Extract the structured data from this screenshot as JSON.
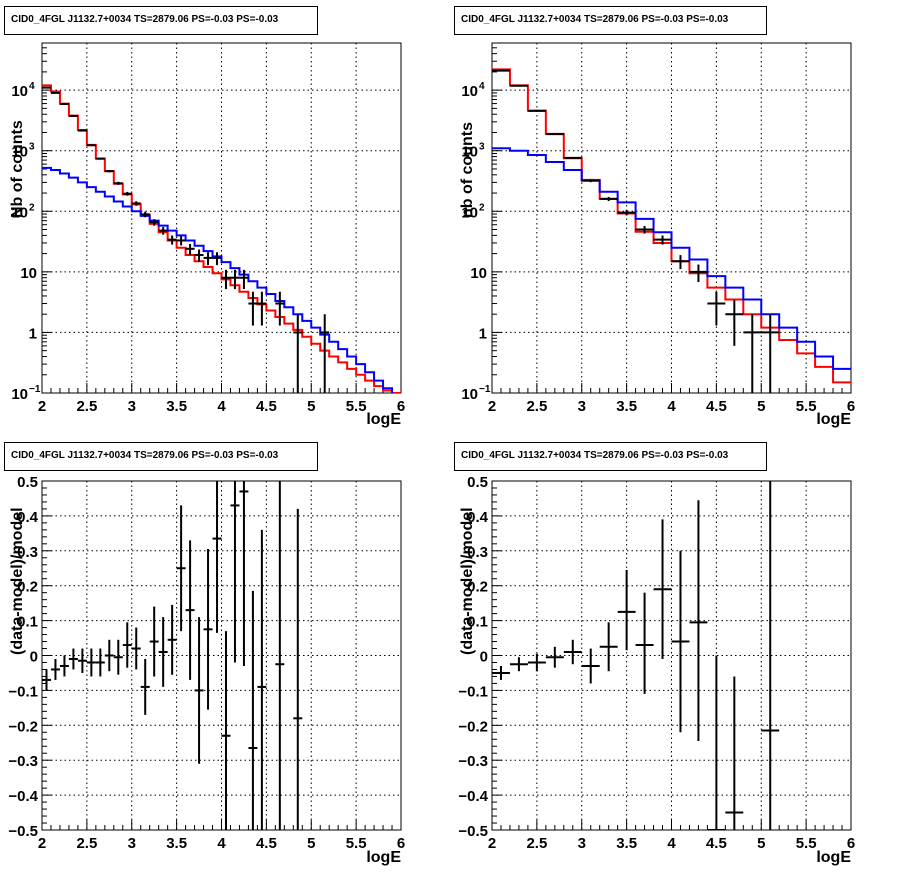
{
  "colors": {
    "total_model": "#ff0000",
    "component_model": "#0000ff",
    "data": "#000000",
    "grid": "#000000",
    "background": "#ffffff"
  },
  "chart_data": [
    {
      "id": "top-left",
      "type": "line",
      "title": "CID0_4FGL J1132.7+0034 TS=2879.06 PS=-0.03 PS=-0.03",
      "xlabel": "logE",
      "ylabel": "Nb of counts",
      "xlim": [
        2,
        6
      ],
      "ylim": [
        0.1,
        60000
      ],
      "yscale": "log",
      "grid": true,
      "xticks": [
        "2",
        "2.5",
        "3",
        "3.5",
        "4",
        "4.5",
        "5",
        "5.5",
        "6"
      ],
      "yticks": [
        {
          "value": 0.1,
          "label": "10",
          "exp": "−1"
        },
        {
          "value": 1,
          "label": "1",
          "exp": ""
        },
        {
          "value": 10,
          "label": "10",
          "exp": ""
        },
        {
          "value": 100,
          "label": "10",
          "exp": "2"
        },
        {
          "value": 1000,
          "label": "10",
          "exp": "3"
        },
        {
          "value": 10000,
          "label": "10",
          "exp": "4"
        }
      ],
      "bin_width": 0.1,
      "series": [
        {
          "style": "step",
          "color": "#ff0000",
          "x": [
            2.0,
            2.1,
            2.2,
            2.3,
            2.4,
            2.5,
            2.6,
            2.7,
            2.8,
            2.9,
            3.0,
            3.1,
            3.2,
            3.3,
            3.4,
            3.5,
            3.6,
            3.7,
            3.8,
            3.9,
            4.0,
            4.1,
            4.2,
            4.3,
            4.4,
            4.5,
            4.6,
            4.7,
            4.8,
            4.9,
            5.0,
            5.1,
            5.2,
            5.3,
            5.4,
            5.5,
            5.6,
            5.7,
            5.8,
            5.9
          ],
          "values": [
            12000,
            9500,
            6000,
            3800,
            2200,
            1250,
            740,
            460,
            285,
            190,
            130,
            88,
            62,
            45,
            33,
            25,
            19,
            15,
            12,
            9.5,
            7.5,
            6.0,
            4.7,
            3.7,
            2.9,
            2.3,
            1.8,
            1.4,
            1.1,
            0.85,
            0.65,
            0.5,
            0.4,
            0.32,
            0.25,
            0.2,
            0.16,
            0.13,
            0.11,
            0.1
          ]
        },
        {
          "style": "step",
          "color": "#0000ff",
          "x": [
            2.0,
            2.1,
            2.2,
            2.3,
            2.4,
            2.5,
            2.6,
            2.7,
            2.8,
            2.9,
            3.0,
            3.1,
            3.2,
            3.3,
            3.4,
            3.5,
            3.6,
            3.7,
            3.8,
            3.9,
            4.0,
            4.1,
            4.2,
            4.3,
            4.4,
            4.5,
            4.6,
            4.7,
            4.8,
            4.9,
            5.0,
            5.1,
            5.2,
            5.3,
            5.4,
            5.5,
            5.6,
            5.7,
            5.8,
            5.9
          ],
          "values": [
            520,
            480,
            420,
            360,
            300,
            250,
            210,
            175,
            145,
            120,
            100,
            84,
            70,
            58,
            48,
            40,
            33,
            27,
            22,
            18,
            14.5,
            11.5,
            9.0,
            7.0,
            5.5,
            4.3,
            3.3,
            2.6,
            2.0,
            1.55,
            1.2,
            0.92,
            0.7,
            0.53,
            0.4,
            0.3,
            0.22,
            0.16,
            0.12,
            0.09
          ]
        },
        {
          "style": "errorbar",
          "color": "#000000",
          "x": [
            2.05,
            2.15,
            2.25,
            2.35,
            2.45,
            2.55,
            2.65,
            2.75,
            2.85,
            2.95,
            3.05,
            3.15,
            3.25,
            3.35,
            3.45,
            3.55,
            3.65,
            3.75,
            3.85,
            3.95,
            4.05,
            4.15,
            4.25,
            4.35,
            4.45,
            4.65,
            4.85,
            5.15
          ],
          "values": [
            11000,
            9000,
            5900,
            3750,
            2150,
            1230,
            740,
            460,
            290,
            195,
            135,
            89,
            66,
            48,
            34,
            33,
            24,
            19,
            17,
            17,
            8,
            8,
            8,
            3,
            3,
            3,
            1,
            1
          ],
          "err_low": [
            105,
            95,
            77,
            61,
            46,
            35,
            27,
            21,
            17,
            14,
            11.6,
            9.4,
            8.1,
            6.9,
            5.8,
            5.7,
            4.9,
            4.4,
            4.1,
            4.1,
            2.8,
            2.8,
            2.8,
            1.7,
            1.7,
            1.7,
            0.99,
            0.99
          ],
          "err_high": [
            105,
            95,
            77,
            61,
            46,
            35,
            27,
            21,
            17,
            14,
            11.6,
            9.4,
            8.1,
            6.9,
            5.8,
            5.7,
            4.9,
            4.4,
            4.1,
            4.1,
            2.8,
            2.8,
            2.8,
            1.7,
            1.7,
            1.7,
            1.0,
            1.0
          ]
        }
      ]
    },
    {
      "id": "top-right",
      "type": "line",
      "title": "CID0_4FGL J1132.7+0034 TS=2879.06 PS=-0.03 PS=-0.03",
      "xlabel": "logE",
      "ylabel": "nb of counts",
      "xlim": [
        2,
        6
      ],
      "ylim": [
        0.1,
        60000
      ],
      "yscale": "log",
      "grid": true,
      "xticks": [
        "2",
        "2.5",
        "3",
        "3.5",
        "4",
        "4.5",
        "5",
        "5.5",
        "6"
      ],
      "yticks": [
        {
          "value": 0.1,
          "label": "10",
          "exp": "−1"
        },
        {
          "value": 1,
          "label": "1",
          "exp": ""
        },
        {
          "value": 10,
          "label": "10",
          "exp": ""
        },
        {
          "value": 100,
          "label": "10",
          "exp": "2"
        },
        {
          "value": 1000,
          "label": "10",
          "exp": "3"
        },
        {
          "value": 10000,
          "label": "10",
          "exp": "4"
        }
      ],
      "bin_width": 0.2,
      "series": [
        {
          "style": "step",
          "color": "#ff0000",
          "x": [
            2.0,
            2.2,
            2.4,
            2.6,
            2.8,
            3.0,
            3.2,
            3.4,
            3.6,
            3.8,
            4.0,
            4.2,
            4.4,
            4.6,
            4.8,
            5.0,
            5.2,
            5.4,
            5.6,
            5.8
          ],
          "values": [
            22000,
            12000,
            4600,
            1900,
            750,
            330,
            160,
            92,
            46,
            30,
            15,
            9.5,
            5.5,
            3.5,
            2.0,
            1.2,
            0.75,
            0.45,
            0.27,
            0.15
          ]
        },
        {
          "style": "step",
          "color": "#0000ff",
          "x": [
            2.0,
            2.2,
            2.4,
            2.6,
            2.8,
            3.0,
            3.2,
            3.4,
            3.6,
            3.8,
            4.0,
            4.2,
            4.4,
            4.6,
            4.8,
            5.0,
            5.2,
            5.4,
            5.6,
            5.8
          ],
          "values": [
            1100,
            1000,
            850,
            650,
            480,
            320,
            210,
            140,
            75,
            45,
            25,
            16,
            8.5,
            5.5,
            3.5,
            2.0,
            1.2,
            0.7,
            0.4,
            0.25
          ]
        },
        {
          "style": "errorbar",
          "color": "#000000",
          "x": [
            2.1,
            2.3,
            2.5,
            2.7,
            2.9,
            3.1,
            3.3,
            3.5,
            3.7,
            3.9,
            4.1,
            4.3,
            4.5,
            4.7,
            4.9,
            5.1
          ],
          "values": [
            21000,
            11800,
            4550,
            1880,
            760,
            320,
            160,
            95,
            50,
            34,
            15,
            10,
            3,
            2,
            1,
            1
          ],
          "err_low": [
            145,
            109,
            67,
            43,
            28,
            18,
            12.6,
            9.7,
            7.1,
            5.8,
            3.9,
            3.2,
            1.7,
            1.4,
            0.99,
            0.99
          ],
          "err_high": [
            145,
            109,
            67,
            43,
            28,
            18,
            12.6,
            9.7,
            7.1,
            5.8,
            3.9,
            3.2,
            1.7,
            1.4,
            1.0,
            1.0
          ]
        }
      ]
    },
    {
      "id": "bottom-left",
      "type": "scatter",
      "title": "CID0_4FGL J1132.7+0034 TS=2879.06 PS=-0.03 PS=-0.03",
      "xlabel": "logE",
      "ylabel": "(data-model)/model",
      "xlim": [
        2,
        6
      ],
      "ylim": [
        -0.5,
        0.5
      ],
      "yscale": "linear",
      "grid": true,
      "xticks": [
        "2",
        "2.5",
        "3",
        "3.5",
        "4",
        "4.5",
        "5",
        "5.5",
        "6"
      ],
      "yticks": [
        {
          "value": -0.5,
          "label": "−0.5"
        },
        {
          "value": -0.4,
          "label": "−0.4"
        },
        {
          "value": -0.3,
          "label": "−0.3"
        },
        {
          "value": -0.2,
          "label": "−0.2"
        },
        {
          "value": -0.1,
          "label": "−0.1"
        },
        {
          "value": 0,
          "label": "0"
        },
        {
          "value": 0.1,
          "label": "0.1"
        },
        {
          "value": 0.2,
          "label": "0.2"
        },
        {
          "value": 0.3,
          "label": "0.3"
        },
        {
          "value": 0.4,
          "label": "0.4"
        },
        {
          "value": 0.5,
          "label": "0.5"
        }
      ],
      "bin_width": 0.1,
      "series": [
        {
          "style": "errorbar",
          "color": "#000000",
          "x": [
            2.05,
            2.15,
            2.25,
            2.35,
            2.45,
            2.55,
            2.65,
            2.75,
            2.85,
            2.95,
            3.05,
            3.15,
            3.25,
            3.35,
            3.45,
            3.55,
            3.65,
            3.75,
            3.85,
            3.95,
            4.05,
            4.15,
            4.25,
            4.35,
            4.45,
            4.65,
            4.85
          ],
          "values": [
            -0.07,
            -0.04,
            -0.03,
            -0.01,
            -0.015,
            -0.02,
            -0.02,
            0.0,
            -0.005,
            0.03,
            0.02,
            -0.09,
            0.04,
            0.01,
            0.045,
            0.25,
            0.13,
            -0.1,
            0.075,
            0.335,
            -0.23,
            0.43,
            0.47,
            -0.265,
            -0.09,
            -0.025,
            -0.18
          ],
          "err_low": [
            0.03,
            0.03,
            0.03,
            0.03,
            0.035,
            0.04,
            0.04,
            0.045,
            0.05,
            0.065,
            0.06,
            0.08,
            0.1,
            0.1,
            0.1,
            0.18,
            0.2,
            0.21,
            0.23,
            0.27,
            0.3,
            0.45,
            0.5,
            0.45,
            0.45,
            0.5,
            0.5
          ],
          "err_high": [
            0.03,
            0.03,
            0.03,
            0.03,
            0.035,
            0.04,
            0.04,
            0.045,
            0.05,
            0.065,
            0.06,
            0.08,
            0.1,
            0.1,
            0.1,
            0.18,
            0.2,
            0.21,
            0.23,
            0.27,
            0.3,
            0.45,
            0.5,
            0.45,
            0.45,
            0.6,
            0.6
          ]
        }
      ]
    },
    {
      "id": "bottom-right",
      "type": "scatter",
      "title": "CID0_4FGL J1132.7+0034 TS=2879.06 PS=-0.03 PS=-0.03",
      "xlabel": "logE",
      "ylabel": "(data-model)/model",
      "xlim": [
        2,
        6
      ],
      "ylim": [
        -0.5,
        0.5
      ],
      "yscale": "linear",
      "grid": true,
      "xticks": [
        "2",
        "2.5",
        "3",
        "3.5",
        "4",
        "4.5",
        "5",
        "5.5",
        "6"
      ],
      "yticks": [
        {
          "value": -0.5,
          "label": "−0.5"
        },
        {
          "value": -0.4,
          "label": "−0.4"
        },
        {
          "value": -0.3,
          "label": "−0.3"
        },
        {
          "value": -0.2,
          "label": "−0.2"
        },
        {
          "value": -0.1,
          "label": "−0.1"
        },
        {
          "value": 0,
          "label": "0"
        },
        {
          "value": 0.1,
          "label": "0.1"
        },
        {
          "value": 0.2,
          "label": "0.2"
        },
        {
          "value": 0.3,
          "label": "0.3"
        },
        {
          "value": 0.4,
          "label": "0.4"
        },
        {
          "value": 0.5,
          "label": "0.5"
        }
      ],
      "bin_width": 0.2,
      "series": [
        {
          "style": "errorbar",
          "color": "#000000",
          "x": [
            2.1,
            2.3,
            2.5,
            2.7,
            2.9,
            3.1,
            3.3,
            3.5,
            3.7,
            3.9,
            4.1,
            4.3,
            4.5,
            4.7,
            5.1
          ],
          "values": [
            -0.05,
            -0.025,
            -0.02,
            -0.005,
            0.01,
            -0.03,
            0.025,
            0.125,
            0.03,
            0.19,
            0.04,
            0.095,
            -0.5,
            -0.45,
            -0.215
          ],
          "err_low": [
            0.02,
            0.02,
            0.025,
            0.03,
            0.035,
            0.05,
            0.07,
            0.11,
            0.14,
            0.2,
            0.26,
            0.34,
            0.5,
            0.5,
            0.6
          ],
          "err_high": [
            0.02,
            0.02,
            0.025,
            0.03,
            0.035,
            0.05,
            0.07,
            0.12,
            0.15,
            0.2,
            0.26,
            0.35,
            0.5,
            0.39,
            0.8
          ]
        }
      ]
    }
  ]
}
